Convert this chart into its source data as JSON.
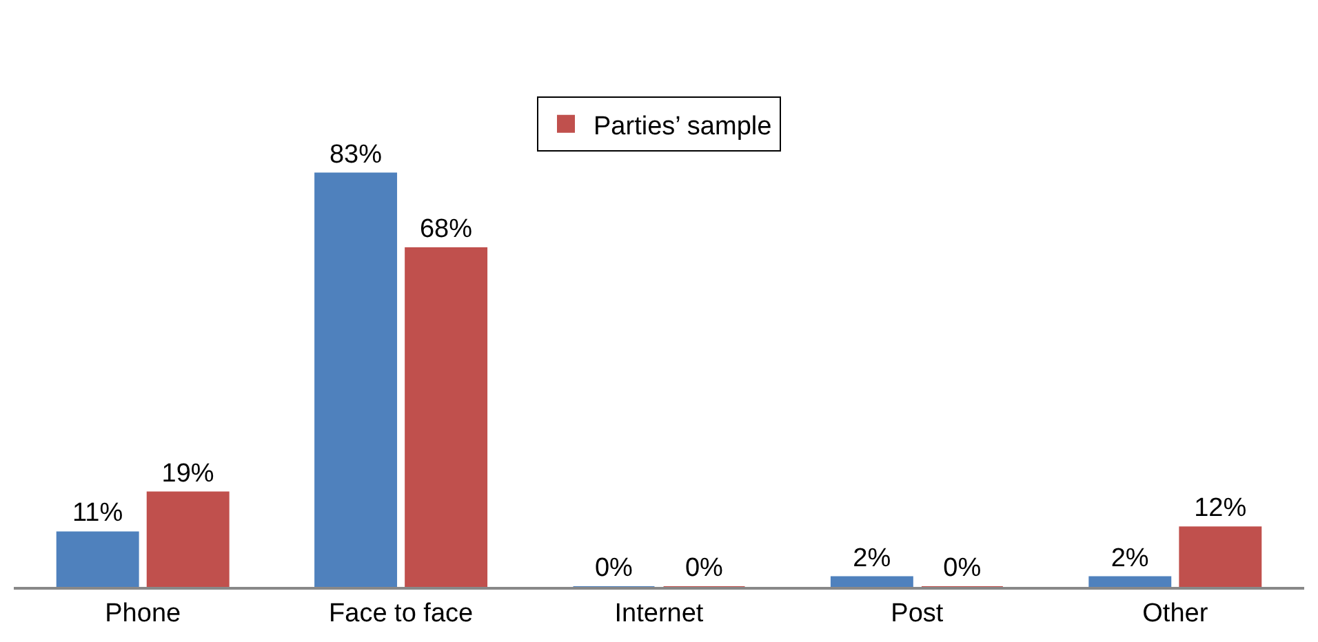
{
  "chart_data": {
    "type": "bar",
    "categories": [
      "Phone",
      "Face to face",
      "Internet",
      "Post",
      "Other"
    ],
    "series": [
      {
        "color": "#4f81bd",
        "values": [
          11,
          83,
          0,
          2,
          2
        ],
        "value_labels": [
          "11%",
          "83%",
          "0%",
          "2%",
          "2%"
        ]
      },
      {
        "name": "Parties’ sample",
        "color": "#c0504d",
        "values": [
          19,
          68,
          0,
          0,
          12
        ],
        "value_labels": [
          "19%",
          "68%",
          "0%",
          "0%",
          "12%"
        ]
      }
    ],
    "legend": "top",
    "grid": false
  }
}
